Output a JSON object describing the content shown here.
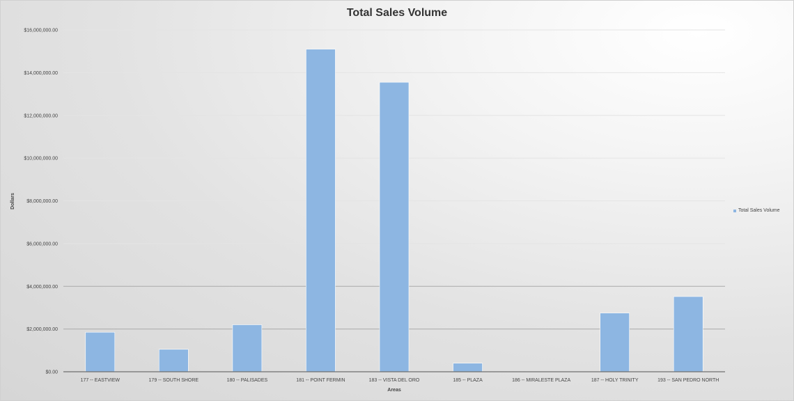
{
  "chart_data": {
    "type": "bar",
    "title": "Total Sales Volume",
    "xlabel": "Areas",
    "ylabel": "Dollars",
    "ylim": [
      0,
      16000000
    ],
    "yticks": [
      0,
      2000000,
      4000000,
      6000000,
      8000000,
      10000000,
      12000000,
      14000000,
      16000000
    ],
    "ytick_labels": [
      "$0.00",
      "$2,000,000.00",
      "$4,000,000.00",
      "$6,000,000.00",
      "$8,000,000.00",
      "$10,000,000.00",
      "$12,000,000.00",
      "$14,000,000.00",
      "$16,000,000.00"
    ],
    "categories": [
      "177 -- EASTVIEW",
      "179 -- SOUTH SHORE",
      "180 -- PALISADES",
      "181 -- POINT FERMIN",
      "183 -- VISTA DEL ORO",
      "185 -- PLAZA",
      "186 -- MIRALESTE PLAZA",
      "187 -- HOLY TRINITY",
      "193 -- SAN PEDRO NORTH"
    ],
    "series": [
      {
        "name": "Total Sales Volume",
        "values": [
          1850000,
          1050000,
          2200000,
          15100000,
          13550000,
          400000,
          0,
          2750000,
          3520000
        ]
      }
    ],
    "grid": true,
    "legend_position": "right",
    "bar_color": "#8db6e2"
  }
}
